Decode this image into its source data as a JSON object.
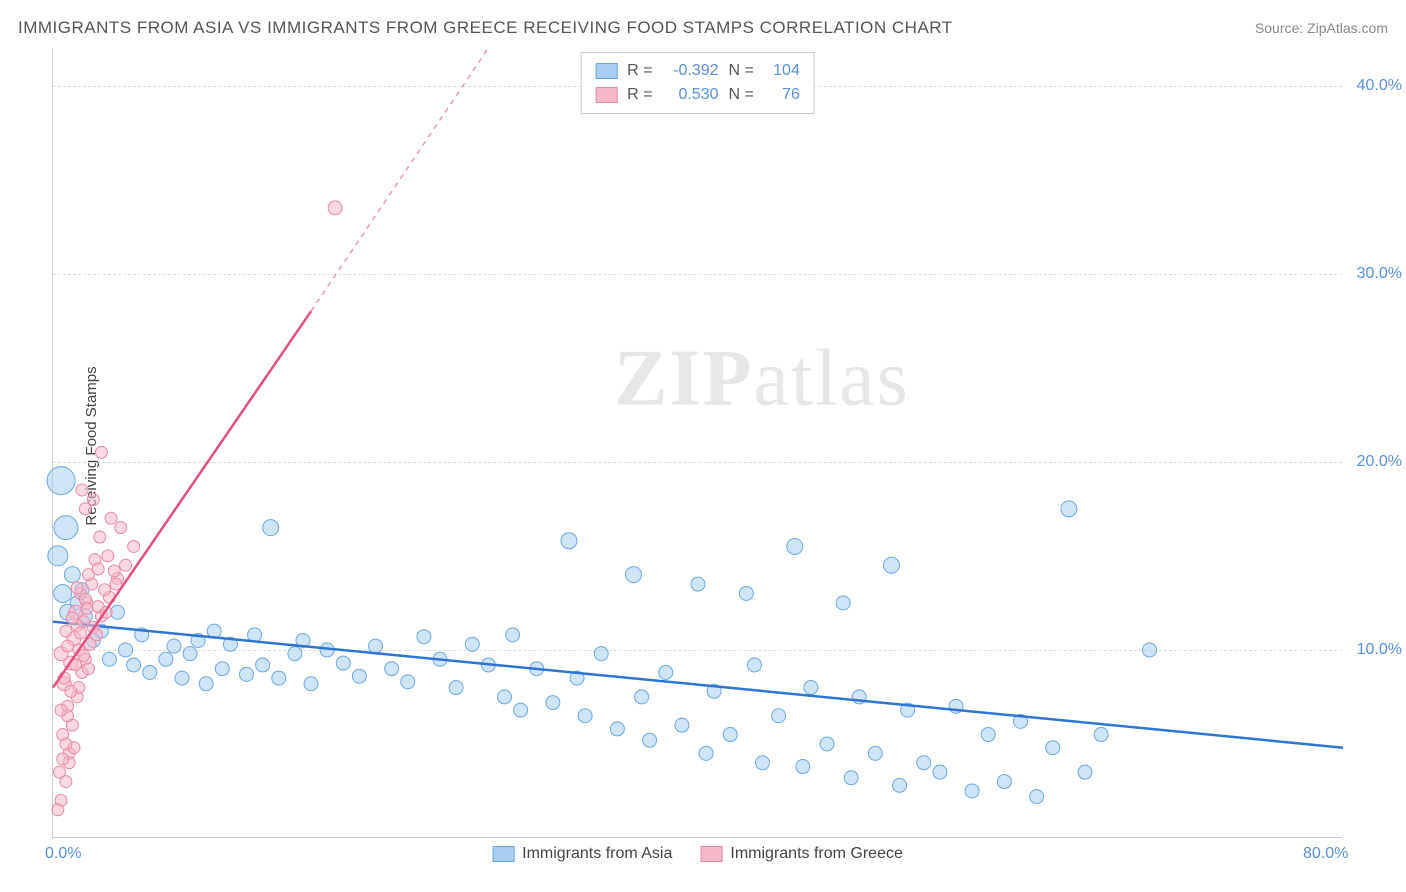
{
  "title": "IMMIGRANTS FROM ASIA VS IMMIGRANTS FROM GREECE RECEIVING FOOD STAMPS CORRELATION CHART",
  "source": "Source: ZipAtlas.com",
  "ylabel": "Receiving Food Stamps",
  "watermark_a": "ZIP",
  "watermark_b": "atlas",
  "chart": {
    "type": "scatter",
    "background_color": "#ffffff",
    "grid_color": "#dddddd",
    "axis_color": "#cccccc",
    "tick_label_color": "#5b8fd6",
    "xlim": [
      0,
      80
    ],
    "ylim": [
      0,
      42
    ],
    "xticks": [
      {
        "v": 0,
        "label": "0.0%"
      },
      {
        "v": 80,
        "label": "80.0%"
      }
    ],
    "yticks": [
      {
        "v": 10,
        "label": "10.0%"
      },
      {
        "v": 20,
        "label": "20.0%"
      },
      {
        "v": 30,
        "label": "30.0%"
      },
      {
        "v": 40,
        "label": "40.0%"
      }
    ],
    "series": [
      {
        "name": "Immigrants from Asia",
        "fill": "#a9cdf0",
        "stroke": "#6fa8e0",
        "fill_opacity": 0.55,
        "line_color": "#2f74d0",
        "line_width": 2.5,
        "R": "-0.392",
        "N": "104",
        "trend": {
          "x1": 0,
          "y1": 11.5,
          "x2": 80,
          "y2": 4.8,
          "dash": false,
          "extra_dash": null
        },
        "points": [
          {
            "x": 0.5,
            "y": 19,
            "r": 14
          },
          {
            "x": 0.8,
            "y": 16.5,
            "r": 12
          },
          {
            "x": 0.3,
            "y": 15,
            "r": 10
          },
          {
            "x": 1.2,
            "y": 14,
            "r": 8
          },
          {
            "x": 0.6,
            "y": 13,
            "r": 9
          },
          {
            "x": 1.5,
            "y": 12.5,
            "r": 7
          },
          {
            "x": 0.9,
            "y": 12,
            "r": 8
          },
          {
            "x": 2.0,
            "y": 11.8,
            "r": 7
          },
          {
            "x": 1.8,
            "y": 13.2,
            "r": 7
          },
          {
            "x": 2.5,
            "y": 10.5,
            "r": 7
          },
          {
            "x": 3.0,
            "y": 11,
            "r": 7
          },
          {
            "x": 3.5,
            "y": 9.5,
            "r": 7
          },
          {
            "x": 4.0,
            "y": 12,
            "r": 7
          },
          {
            "x": 4.5,
            "y": 10,
            "r": 7
          },
          {
            "x": 5.0,
            "y": 9.2,
            "r": 7
          },
          {
            "x": 5.5,
            "y": 10.8,
            "r": 7
          },
          {
            "x": 6.0,
            "y": 8.8,
            "r": 7
          },
          {
            "x": 7.0,
            "y": 9.5,
            "r": 7
          },
          {
            "x": 7.5,
            "y": 10.2,
            "r": 7
          },
          {
            "x": 8.0,
            "y": 8.5,
            "r": 7
          },
          {
            "x": 8.5,
            "y": 9.8,
            "r": 7
          },
          {
            "x": 9.0,
            "y": 10.5,
            "r": 7
          },
          {
            "x": 9.5,
            "y": 8.2,
            "r": 7
          },
          {
            "x": 10,
            "y": 11,
            "r": 7
          },
          {
            "x": 10.5,
            "y": 9,
            "r": 7
          },
          {
            "x": 11,
            "y": 10.3,
            "r": 7
          },
          {
            "x": 12,
            "y": 8.7,
            "r": 7
          },
          {
            "x": 12.5,
            "y": 10.8,
            "r": 7
          },
          {
            "x": 13,
            "y": 9.2,
            "r": 7
          },
          {
            "x": 13.5,
            "y": 16.5,
            "r": 8
          },
          {
            "x": 14,
            "y": 8.5,
            "r": 7
          },
          {
            "x": 15,
            "y": 9.8,
            "r": 7
          },
          {
            "x": 15.5,
            "y": 10.5,
            "r": 7
          },
          {
            "x": 16,
            "y": 8.2,
            "r": 7
          },
          {
            "x": 17,
            "y": 10,
            "r": 7
          },
          {
            "x": 18,
            "y": 9.3,
            "r": 7
          },
          {
            "x": 19,
            "y": 8.6,
            "r": 7
          },
          {
            "x": 20,
            "y": 10.2,
            "r": 7
          },
          {
            "x": 21,
            "y": 9,
            "r": 7
          },
          {
            "x": 22,
            "y": 8.3,
            "r": 7
          },
          {
            "x": 23,
            "y": 10.7,
            "r": 7
          },
          {
            "x": 24,
            "y": 9.5,
            "r": 7
          },
          {
            "x": 25,
            "y": 8,
            "r": 7
          },
          {
            "x": 26,
            "y": 10.3,
            "r": 7
          },
          {
            "x": 27,
            "y": 9.2,
            "r": 7
          },
          {
            "x": 28,
            "y": 7.5,
            "r": 7
          },
          {
            "x": 28.5,
            "y": 10.8,
            "r": 7
          },
          {
            "x": 29,
            "y": 6.8,
            "r": 7
          },
          {
            "x": 30,
            "y": 9,
            "r": 7
          },
          {
            "x": 31,
            "y": 7.2,
            "r": 7
          },
          {
            "x": 32,
            "y": 15.8,
            "r": 8
          },
          {
            "x": 32.5,
            "y": 8.5,
            "r": 7
          },
          {
            "x": 33,
            "y": 6.5,
            "r": 7
          },
          {
            "x": 34,
            "y": 9.8,
            "r": 7
          },
          {
            "x": 35,
            "y": 5.8,
            "r": 7
          },
          {
            "x": 36,
            "y": 14,
            "r": 8
          },
          {
            "x": 36.5,
            "y": 7.5,
            "r": 7
          },
          {
            "x": 37,
            "y": 5.2,
            "r": 7
          },
          {
            "x": 38,
            "y": 8.8,
            "r": 7
          },
          {
            "x": 39,
            "y": 6,
            "r": 7
          },
          {
            "x": 40,
            "y": 13.5,
            "r": 7
          },
          {
            "x": 40.5,
            "y": 4.5,
            "r": 7
          },
          {
            "x": 41,
            "y": 7.8,
            "r": 7
          },
          {
            "x": 42,
            "y": 5.5,
            "r": 7
          },
          {
            "x": 43,
            "y": 13,
            "r": 7
          },
          {
            "x": 43.5,
            "y": 9.2,
            "r": 7
          },
          {
            "x": 44,
            "y": 4,
            "r": 7
          },
          {
            "x": 45,
            "y": 6.5,
            "r": 7
          },
          {
            "x": 46,
            "y": 15.5,
            "r": 8
          },
          {
            "x": 46.5,
            "y": 3.8,
            "r": 7
          },
          {
            "x": 47,
            "y": 8,
            "r": 7
          },
          {
            "x": 48,
            "y": 5,
            "r": 7
          },
          {
            "x": 49,
            "y": 12.5,
            "r": 7
          },
          {
            "x": 49.5,
            "y": 3.2,
            "r": 7
          },
          {
            "x": 50,
            "y": 7.5,
            "r": 7
          },
          {
            "x": 51,
            "y": 4.5,
            "r": 7
          },
          {
            "x": 52,
            "y": 14.5,
            "r": 8
          },
          {
            "x": 52.5,
            "y": 2.8,
            "r": 7
          },
          {
            "x": 53,
            "y": 6.8,
            "r": 7
          },
          {
            "x": 54,
            "y": 4,
            "r": 7
          },
          {
            "x": 55,
            "y": 3.5,
            "r": 7
          },
          {
            "x": 56,
            "y": 7,
            "r": 7
          },
          {
            "x": 57,
            "y": 2.5,
            "r": 7
          },
          {
            "x": 58,
            "y": 5.5,
            "r": 7
          },
          {
            "x": 59,
            "y": 3,
            "r": 7
          },
          {
            "x": 60,
            "y": 6.2,
            "r": 7
          },
          {
            "x": 61,
            "y": 2.2,
            "r": 7
          },
          {
            "x": 62,
            "y": 4.8,
            "r": 7
          },
          {
            "x": 63,
            "y": 17.5,
            "r": 8
          },
          {
            "x": 64,
            "y": 3.5,
            "r": 7
          },
          {
            "x": 65,
            "y": 5.5,
            "r": 7
          },
          {
            "x": 68,
            "y": 10,
            "r": 7
          }
        ]
      },
      {
        "name": "Immigrants from Greece",
        "fill": "#f5b8c8",
        "stroke": "#e88aa5",
        "fill_opacity": 0.55,
        "line_color": "#e05080",
        "line_width": 2.5,
        "R": "0.530",
        "N": "76",
        "trend": {
          "x1": 0,
          "y1": 8,
          "x2": 16,
          "y2": 28,
          "dash": false,
          "extra_dash": {
            "x1": 16,
            "y1": 28,
            "x2": 27,
            "y2": 42
          }
        },
        "points": [
          {
            "x": 0.5,
            "y": 2,
            "r": 6
          },
          {
            "x": 0.8,
            "y": 3,
            "r": 6
          },
          {
            "x": 1.0,
            "y": 4.5,
            "r": 6
          },
          {
            "x": 0.6,
            "y": 5.5,
            "r": 6
          },
          {
            "x": 1.2,
            "y": 6,
            "r": 6
          },
          {
            "x": 0.9,
            "y": 7,
            "r": 6
          },
          {
            "x": 1.5,
            "y": 7.5,
            "r": 6
          },
          {
            "x": 0.7,
            "y": 8.2,
            "r": 7
          },
          {
            "x": 1.8,
            "y": 8.8,
            "r": 6
          },
          {
            "x": 1.1,
            "y": 9.3,
            "r": 7
          },
          {
            "x": 2.0,
            "y": 9.5,
            "r": 6
          },
          {
            "x": 0.5,
            "y": 9.8,
            "r": 7
          },
          {
            "x": 1.6,
            "y": 10,
            "r": 6
          },
          {
            "x": 2.3,
            "y": 10.3,
            "r": 6
          },
          {
            "x": 1.3,
            "y": 10.6,
            "r": 7
          },
          {
            "x": 0.8,
            "y": 11,
            "r": 6
          },
          {
            "x": 2.5,
            "y": 11.2,
            "r": 6
          },
          {
            "x": 1.9,
            "y": 11.5,
            "r": 6
          },
          {
            "x": 3.0,
            "y": 11.8,
            "r": 6
          },
          {
            "x": 1.4,
            "y": 12,
            "r": 7
          },
          {
            "x": 2.8,
            "y": 12.3,
            "r": 6
          },
          {
            "x": 2.1,
            "y": 12.5,
            "r": 6
          },
          {
            "x": 3.5,
            "y": 12.8,
            "r": 6
          },
          {
            "x": 1.7,
            "y": 13,
            "r": 6
          },
          {
            "x": 3.2,
            "y": 13.2,
            "r": 6
          },
          {
            "x": 2.4,
            "y": 13.5,
            "r": 6
          },
          {
            "x": 4.0,
            "y": 13.8,
            "r": 6
          },
          {
            "x": 2.2,
            "y": 14,
            "r": 6
          },
          {
            "x": 3.8,
            "y": 14.2,
            "r": 6
          },
          {
            "x": 4.5,
            "y": 14.5,
            "r": 6
          },
          {
            "x": 2.6,
            "y": 14.8,
            "r": 6
          },
          {
            "x": 3.4,
            "y": 15,
            "r": 6
          },
          {
            "x": 5.0,
            "y": 15.5,
            "r": 6
          },
          {
            "x": 2.9,
            "y": 16,
            "r": 6
          },
          {
            "x": 4.2,
            "y": 16.5,
            "r": 6
          },
          {
            "x": 3.6,
            "y": 17,
            "r": 6
          },
          {
            "x": 2.0,
            "y": 17.5,
            "r": 6
          },
          {
            "x": 2.5,
            "y": 18,
            "r": 6
          },
          {
            "x": 1.8,
            "y": 18.5,
            "r": 6
          },
          {
            "x": 3.0,
            "y": 20.5,
            "r": 6
          },
          {
            "x": 1.0,
            "y": 4,
            "r": 6
          },
          {
            "x": 1.3,
            "y": 4.8,
            "r": 6
          },
          {
            "x": 0.9,
            "y": 6.5,
            "r": 6
          },
          {
            "x": 1.6,
            "y": 8,
            "r": 6
          },
          {
            "x": 2.2,
            "y": 9,
            "r": 6
          },
          {
            "x": 1.9,
            "y": 9.7,
            "r": 6
          },
          {
            "x": 2.7,
            "y": 10.8,
            "r": 6
          },
          {
            "x": 1.5,
            "y": 11.3,
            "r": 6
          },
          {
            "x": 3.3,
            "y": 12,
            "r": 6
          },
          {
            "x": 2.0,
            "y": 12.7,
            "r": 6
          },
          {
            "x": 3.9,
            "y": 13.5,
            "r": 6
          },
          {
            "x": 2.8,
            "y": 14.3,
            "r": 6
          },
          {
            "x": 0.4,
            "y": 3.5,
            "r": 6
          },
          {
            "x": 0.6,
            "y": 4.2,
            "r": 6
          },
          {
            "x": 0.8,
            "y": 5,
            "r": 6
          },
          {
            "x": 0.5,
            "y": 6.8,
            "r": 6
          },
          {
            "x": 1.1,
            "y": 7.8,
            "r": 6
          },
          {
            "x": 0.7,
            "y": 8.5,
            "r": 6
          },
          {
            "x": 1.4,
            "y": 9.2,
            "r": 6
          },
          {
            "x": 0.9,
            "y": 10.2,
            "r": 6
          },
          {
            "x": 1.7,
            "y": 10.9,
            "r": 6
          },
          {
            "x": 1.2,
            "y": 11.7,
            "r": 6
          },
          {
            "x": 2.1,
            "y": 12.2,
            "r": 6
          },
          {
            "x": 1.5,
            "y": 13.3,
            "r": 6
          },
          {
            "x": 0.3,
            "y": 1.5,
            "r": 6
          },
          {
            "x": 17.5,
            "y": 33.5,
            "r": 7
          }
        ]
      }
    ],
    "legend_bottom": [
      {
        "swatch_fill": "#a9cdf0",
        "swatch_stroke": "#6fa8e0",
        "label": "Immigrants from Asia"
      },
      {
        "swatch_fill": "#f5b8c8",
        "swatch_stroke": "#e88aa5",
        "label": "Immigrants from Greece"
      }
    ]
  }
}
